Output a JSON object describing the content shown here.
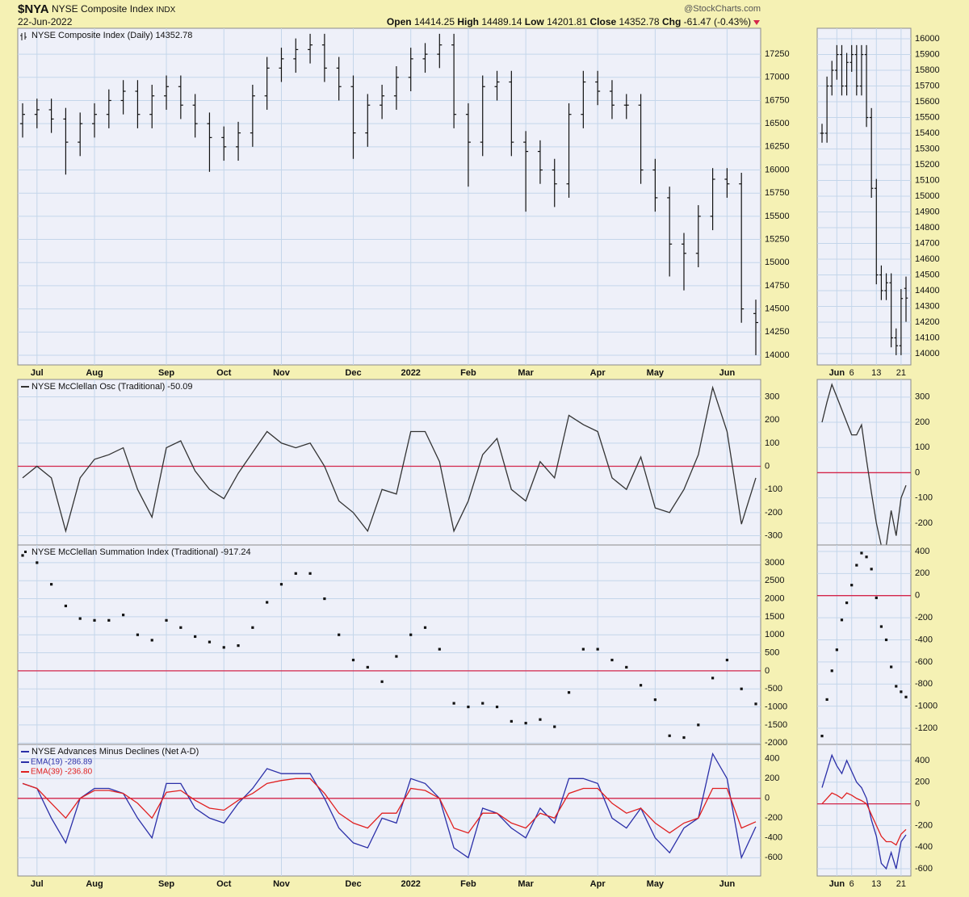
{
  "header": {
    "symbol": "$NYA",
    "name": "NYSE Composite Index",
    "exchange": "INDX",
    "date": "22-Jun-2022",
    "source": "@StockCharts.com",
    "open_label": "Open",
    "open": "14414.25",
    "high_label": "High",
    "high": "14489.14",
    "low_label": "Low",
    "low": "14201.81",
    "close_label": "Close",
    "close": "14352.78",
    "chg_label": "Chg",
    "chg": "-61.47 (-0.43%)"
  },
  "chart_data": [
    {
      "type": "ohlc",
      "title": "NYSE Composite Index (Daily) 14352.78",
      "color": "#111111",
      "categories": [
        null,
        "Jul",
        null,
        null,
        null,
        "Aug",
        null,
        null,
        null,
        null,
        "Sep",
        null,
        null,
        null,
        "Oct",
        null,
        null,
        null,
        "Nov",
        null,
        null,
        null,
        null,
        "Dec",
        null,
        null,
        null,
        "2022",
        null,
        null,
        null,
        "Feb",
        null,
        null,
        null,
        "Mar",
        null,
        null,
        null,
        null,
        "Apr",
        null,
        null,
        null,
        "May",
        null,
        null,
        null,
        null,
        "Jun",
        null,
        null
      ],
      "open": [
        16500,
        16600,
        16650,
        16550,
        16300,
        16500,
        16600,
        16750,
        16850,
        16600,
        16800,
        16900,
        16700,
        16500,
        16350,
        16250,
        16400,
        16800,
        17100,
        17200,
        17300,
        17350,
        17100,
        16900,
        16400,
        16700,
        16800,
        17000,
        17200,
        17250,
        17350,
        16600,
        16300,
        16900,
        16950,
        16300,
        16200,
        16000,
        15850,
        16600,
        16950,
        16850,
        16700,
        16700,
        16000,
        15700,
        15200,
        15100,
        15500,
        15900,
        15850,
        14450
      ],
      "high": [
        16720,
        16770,
        16770,
        16670,
        16620,
        16720,
        16870,
        16970,
        16970,
        16920,
        17020,
        17020,
        16820,
        16620,
        16470,
        16520,
        16920,
        17220,
        17320,
        17420,
        17470,
        17470,
        17220,
        17020,
        16820,
        16920,
        17120,
        17320,
        17370,
        17470,
        17470,
        16720,
        17020,
        17070,
        17070,
        16420,
        16320,
        16120,
        16720,
        17070,
        17070,
        16970,
        16820,
        16820,
        16120,
        15820,
        15320,
        15620,
        16020,
        16020,
        15970,
        14600
      ],
      "low": [
        16350,
        16450,
        16400,
        15950,
        16150,
        16350,
        16450,
        16600,
        16450,
        16450,
        16650,
        16550,
        16350,
        15980,
        16100,
        16100,
        16250,
        16650,
        16950,
        17050,
        17150,
        16950,
        16750,
        16120,
        16250,
        16550,
        16650,
        16850,
        17050,
        17100,
        16450,
        15820,
        16150,
        16750,
        16150,
        15550,
        15850,
        15600,
        15700,
        16450,
        16700,
        16550,
        16550,
        15850,
        15550,
        14850,
        14700,
        14950,
        15350,
        15700,
        14350,
        14000
      ],
      "close": [
        16600,
        16650,
        16550,
        16300,
        16500,
        16600,
        16750,
        16850,
        16600,
        16800,
        16900,
        16700,
        16500,
        16350,
        16250,
        16400,
        16800,
        17100,
        17200,
        17300,
        17350,
        17100,
        16900,
        16400,
        16700,
        16800,
        17000,
        17200,
        17250,
        17350,
        16600,
        16300,
        16900,
        16950,
        16300,
        16200,
        16000,
        15850,
        16600,
        16950,
        16850,
        16700,
        16700,
        16000,
        15700,
        15200,
        15100,
        15500,
        15900,
        15850,
        14500,
        14352.78
      ],
      "ylim": [
        13895,
        17530
      ],
      "yticks": [
        14000,
        14250,
        14500,
        14750,
        15000,
        15250,
        15500,
        15750,
        16000,
        16250,
        16500,
        16750,
        17000,
        17250
      ],
      "grid": true
    },
    {
      "type": "line",
      "title": "NYSE McClellan Osc (Traditional) -50.09",
      "series": [
        {
          "color": "#333333",
          "values": [
            -50,
            0,
            -50,
            -280,
            -50,
            30,
            50,
            80,
            -100,
            -220,
            80,
            110,
            -20,
            -100,
            -140,
            -30,
            60,
            150,
            100,
            80,
            100,
            0,
            -150,
            -200,
            -280,
            -100,
            -120,
            150,
            150,
            20,
            -280,
            -150,
            50,
            120,
            -100,
            -150,
            20,
            -50,
            220,
            180,
            150,
            -50,
            -100,
            40,
            -180,
            -200,
            -100,
            50,
            340,
            150,
            -250,
            -50.09
          ]
        }
      ],
      "hline": {
        "value": 0,
        "color": "#d4264b"
      },
      "ylim": [
        -340,
        375
      ],
      "yticks": [
        -300,
        -200,
        -100,
        0,
        100,
        200,
        300
      ],
      "grid": true
    },
    {
      "type": "dots",
      "title": "NYSE McClellan Summation Index (Traditional) -917.24",
      "series": [
        {
          "color": "#111111",
          "values": [
            3200,
            3000,
            2400,
            1800,
            1450,
            1400,
            1400,
            1550,
            1000,
            850,
            1400,
            1200,
            950,
            800,
            650,
            700,
            1200,
            1900,
            2400,
            2700,
            2700,
            2000,
            1000,
            300,
            100,
            -300,
            400,
            1000,
            1200,
            600,
            -900,
            -1000,
            -900,
            -1000,
            -1400,
            -1450,
            -1350,
            -1550,
            -600,
            600,
            600,
            300,
            100,
            -400,
            -800,
            -1800,
            -1850,
            -1500,
            -200,
            300,
            -500,
            -917.24
          ]
        }
      ],
      "hline": {
        "value": 0,
        "color": "#d4264b"
      },
      "ylim": [
        -2040,
        3490
      ],
      "yticks": [
        -2000,
        -1500,
        -1000,
        -500,
        0,
        500,
        1000,
        1500,
        2000,
        2500,
        3000
      ],
      "grid": true
    },
    {
      "type": "line",
      "title": "NYSE Advances Minus Declines (Net A-D)",
      "categories": [
        null,
        "Jul",
        null,
        null,
        null,
        "Aug",
        null,
        null,
        null,
        null,
        "Sep",
        null,
        null,
        null,
        "Oct",
        null,
        null,
        null,
        "Nov",
        null,
        null,
        null,
        null,
        "Dec",
        null,
        null,
        null,
        "2022",
        null,
        null,
        null,
        "Feb",
        null,
        null,
        null,
        "Mar",
        null,
        null,
        null,
        null,
        "Apr",
        null,
        null,
        null,
        "May",
        null,
        null,
        null,
        null,
        "Jun",
        null,
        null
      ],
      "series": [
        {
          "name": "EMA(19) -286.89",
          "color": "#2b2fa8",
          "values": [
            150,
            100,
            -200,
            -450,
            0,
            100,
            100,
            50,
            -200,
            -400,
            150,
            150,
            -100,
            -200,
            -250,
            -50,
            100,
            300,
            250,
            250,
            250,
            0,
            -300,
            -450,
            -500,
            -200,
            -250,
            200,
            150,
            0,
            -500,
            -600,
            -100,
            -150,
            -300,
            -400,
            -100,
            -250,
            200,
            200,
            150,
            -200,
            -300,
            -100,
            -400,
            -550,
            -300,
            -200,
            450,
            200,
            -600,
            -286.89
          ]
        },
        {
          "name": "EMA(39) -236.80",
          "color": "#e02020",
          "values": [
            150,
            100,
            -50,
            -200,
            0,
            80,
            80,
            50,
            -50,
            -200,
            60,
            80,
            -20,
            -100,
            -120,
            -20,
            50,
            150,
            180,
            200,
            200,
            50,
            -150,
            -250,
            -300,
            -150,
            -150,
            100,
            80,
            0,
            -300,
            -350,
            -150,
            -150,
            -250,
            -300,
            -150,
            -200,
            50,
            100,
            100,
            -50,
            -150,
            -100,
            -250,
            -350,
            -250,
            -200,
            100,
            100,
            -300,
            -236.8
          ]
        }
      ],
      "hline": {
        "value": 0,
        "color": "#d4264b"
      },
      "ylim": [
        -785,
        545
      ],
      "yticks": [
        -600,
        -400,
        -200,
        0,
        200,
        400
      ],
      "grid": true
    },
    {
      "type": "ohlc",
      "color": "#111111",
      "categories": [
        null,
        null,
        null,
        "Jun",
        null,
        null,
        "6",
        null,
        null,
        null,
        null,
        "13",
        null,
        null,
        null,
        null,
        "21",
        null
      ],
      "open": [
        15400,
        15400,
        15700,
        15800,
        15900,
        15700,
        15850,
        15900,
        15700,
        15900,
        15500,
        15050,
        14500,
        14400,
        14450,
        14100,
        14050,
        14414.25
      ],
      "high": [
        15460,
        15760,
        15860,
        15960,
        15960,
        15910,
        15960,
        15960,
        15960,
        15960,
        15560,
        15110,
        14560,
        14510,
        14510,
        14160,
        14410,
        14489.14
      ],
      "low": [
        15340,
        15340,
        15640,
        15740,
        15640,
        15640,
        15790,
        15640,
        15640,
        15440,
        14990,
        14440,
        14340,
        14340,
        14040,
        13990,
        13990,
        14201.81
      ],
      "close": [
        15400,
        15700,
        15800,
        15900,
        15700,
        15850,
        15900,
        15700,
        15900,
        15500,
        15050,
        14500,
        14400,
        14450,
        14100,
        14050,
        14350,
        14352.78
      ],
      "ylim": [
        13928,
        16067
      ],
      "yticks": [
        14000,
        14100,
        14200,
        14300,
        14400,
        14500,
        14600,
        14700,
        14800,
        14900,
        15000,
        15100,
        15200,
        15300,
        15400,
        15500,
        15600,
        15700,
        15800,
        15900,
        16000
      ],
      "grid": true
    },
    {
      "type": "line",
      "series": [
        {
          "color": "#333333",
          "values": [
            200,
            280,
            350,
            300,
            250,
            200,
            150,
            150,
            190,
            50,
            -80,
            -200,
            -290,
            -290,
            -150,
            -250,
            -100,
            -50.09
          ]
        }
      ],
      "hline": {
        "value": 0,
        "color": "#d4264b"
      },
      "ylim": [
        -287,
        370
      ],
      "yticks": [
        -200,
        -100,
        0,
        100,
        200,
        300
      ],
      "grid": true
    },
    {
      "type": "dots",
      "series": [
        {
          "color": "#111111",
          "values": [
            -1270,
            -940,
            -680,
            -490,
            -220,
            -65,
            95,
            275,
            385,
            350,
            240,
            -20,
            -280,
            -400,
            -645,
            -820,
            -870,
            -917.24
          ]
        }
      ],
      "hline": {
        "value": 0,
        "color": "#d4264b"
      },
      "ylim": [
        -1346,
        458
      ],
      "yticks": [
        -1200,
        -1000,
        -800,
        -600,
        -400,
        -200,
        0,
        200,
        400
      ],
      "grid": true
    },
    {
      "type": "line",
      "categories": [
        null,
        null,
        null,
        "Jun",
        null,
        null,
        "6",
        null,
        null,
        null,
        null,
        "13",
        null,
        null,
        null,
        null,
        "21",
        null
      ],
      "series": [
        {
          "color": "#2b2fa8",
          "values": [
            150,
            300,
            450,
            350,
            280,
            400,
            300,
            200,
            150,
            50,
            -150,
            -300,
            -550,
            -600,
            -450,
            -600,
            -350,
            -286.89
          ]
        },
        {
          "color": "#e02020",
          "values": [
            0,
            50,
            100,
            80,
            50,
            100,
            80,
            50,
            30,
            0,
            -100,
            -200,
            -300,
            -350,
            -350,
            -380,
            -280,
            -236.8
          ]
        }
      ],
      "hline": {
        "value": 0,
        "color": "#d4264b"
      },
      "ylim": [
        -667,
        549
      ],
      "yticks": [
        -600,
        -400,
        -200,
        0,
        200,
        400
      ],
      "grid": true
    }
  ]
}
